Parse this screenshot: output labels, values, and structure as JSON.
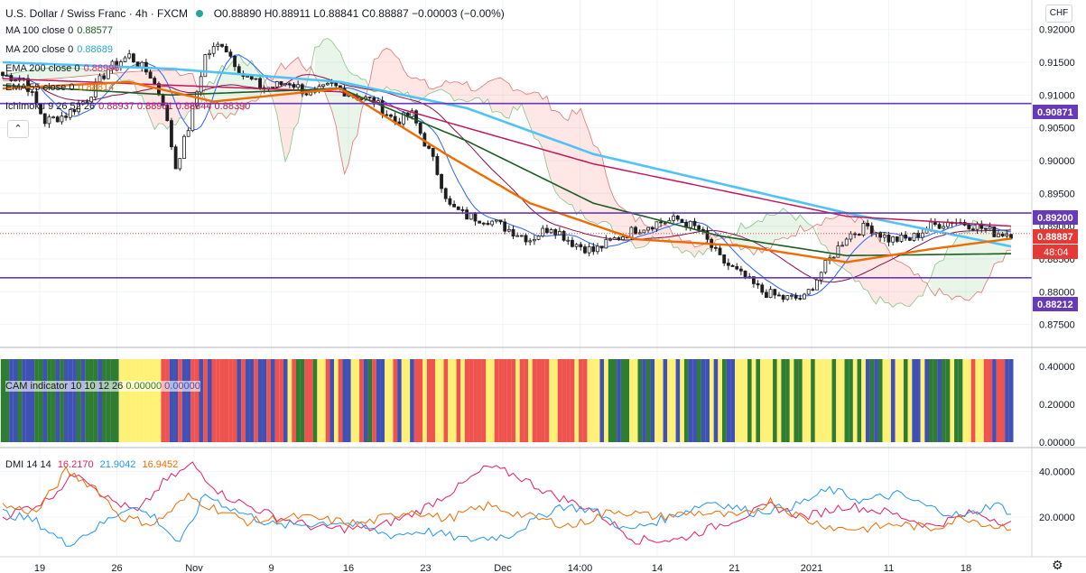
{
  "header": {
    "title": "U.S. Dollar / Swiss Franc · 4h · FXCM",
    "ohlc": "O0.88890 H0.88911 L0.88841 C0.88887 −0.00003 (−0.00%)",
    "currency": "CHF"
  },
  "legend": [
    {
      "label": "MA 100 close 0",
      "value": "0.88577",
      "color": "#1b5e20"
    },
    {
      "label": "MA 200 close 0",
      "value": "0.88689",
      "color": "#26a7c9"
    },
    {
      "label": "EMA 200 close 0",
      "value": "0.88996",
      "color": "#e91e63"
    },
    {
      "label": "EMA 55 close 0",
      "value": "0.88814",
      "color": "#ef6c00"
    },
    {
      "label": "Ichimoku 9 26 52 26",
      "value": "0.88937 0.88951 0.88844 0.88390",
      "color": "#2962ff"
    }
  ],
  "cam": {
    "label": "CAM indicator 10 10 12 26",
    "v1": "0.00000",
    "v2": "0.00000"
  },
  "dmi": {
    "label": "DMI 14 14",
    "v1": "16.2170",
    "v2": "21.9042",
    "v3": "16.9452",
    "c1": "#e91e63",
    "c2": "#2196f3",
    "c3": "#ef6c00"
  },
  "price_badges": {
    "upper_level": "0.90871",
    "mid_level": "0.89200",
    "last_price": "0.88887",
    "countdown": "48:04",
    "lower_level": "0.88212"
  },
  "chart_data": [
    {
      "type": "candlestick",
      "title": "U.S. Dollar / Swiss Franc · 4h · FXCM",
      "ylim": [
        0.8715,
        0.9245
      ],
      "y_ticks": [
        "0.92000",
        "0.91500",
        "0.91000",
        "0.90500",
        "0.90000",
        "0.89500",
        "0.89000",
        "0.88500",
        "0.88000",
        "0.87500"
      ],
      "x_ticks": [
        "19",
        "26",
        "Nov",
        "9",
        "16",
        "23",
        "Dec",
        "14:00",
        "14",
        "21",
        "2021",
        "11",
        "18"
      ],
      "horizontal_lines": [
        0.90871,
        0.892,
        0.88212
      ],
      "close_anchors": [
        [
          0,
          0.913
        ],
        [
          5,
          0.9125
        ],
        [
          10,
          0.906
        ],
        [
          15,
          0.907
        ],
        [
          20,
          0.9095
        ],
        [
          25,
          0.914
        ],
        [
          30,
          0.916
        ],
        [
          35,
          0.913
        ],
        [
          38,
          0.909
        ],
        [
          41,
          0.899
        ],
        [
          44,
          0.905
        ],
        [
          48,
          0.916
        ],
        [
          52,
          0.918
        ],
        [
          57,
          0.913
        ],
        [
          62,
          0.911
        ],
        [
          68,
          0.912
        ],
        [
          73,
          0.91
        ],
        [
          78,
          0.9115
        ],
        [
          83,
          0.91
        ],
        [
          88,
          0.909
        ],
        [
          93,
          0.906
        ],
        [
          97,
          0.907
        ],
        [
          102,
          0.9
        ],
        [
          106,
          0.893
        ],
        [
          110,
          0.8915
        ],
        [
          115,
          0.891
        ],
        [
          120,
          0.8895
        ],
        [
          125,
          0.888
        ],
        [
          130,
          0.89
        ],
        [
          135,
          0.8875
        ],
        [
          140,
          0.8862
        ],
        [
          145,
          0.888
        ],
        [
          150,
          0.8895
        ],
        [
          155,
          0.8905
        ],
        [
          160,
          0.891
        ],
        [
          165,
          0.8895
        ],
        [
          170,
          0.885
        ],
        [
          175,
          0.8825
        ],
        [
          180,
          0.88
        ],
        [
          185,
          0.879
        ],
        [
          190,
          0.879
        ],
        [
          195,
          0.884
        ],
        [
          200,
          0.8885
        ],
        [
          205,
          0.89
        ],
        [
          210,
          0.888
        ],
        [
          215,
          0.888
        ],
        [
          220,
          0.89
        ],
        [
          225,
          0.8908
        ],
        [
          230,
          0.8902
        ],
        [
          235,
          0.889
        ],
        [
          239,
          0.8889
        ]
      ],
      "ma_100": [
        [
          0,
          0.9115
        ],
        [
          40,
          0.91
        ],
        [
          80,
          0.911
        ],
        [
          110,
          0.903
        ],
        [
          140,
          0.8935
        ],
        [
          170,
          0.8885
        ],
        [
          200,
          0.8855
        ],
        [
          239,
          0.8858
        ]
      ],
      "ma_200": [
        [
          0,
          0.915
        ],
        [
          40,
          0.914
        ],
        [
          80,
          0.912
        ],
        [
          110,
          0.908
        ],
        [
          140,
          0.901
        ],
        [
          170,
          0.8965
        ],
        [
          200,
          0.892
        ],
        [
          239,
          0.8869
        ]
      ],
      "ema_200": [
        [
          0,
          0.9125
        ],
        [
          40,
          0.9115
        ],
        [
          80,
          0.9105
        ],
        [
          110,
          0.905
        ],
        [
          140,
          0.8995
        ],
        [
          170,
          0.8955
        ],
        [
          200,
          0.8915
        ],
        [
          239,
          0.89
        ]
      ],
      "ema_55": [
        [
          0,
          0.911
        ],
        [
          30,
          0.912
        ],
        [
          50,
          0.909
        ],
        [
          80,
          0.911
        ],
        [
          105,
          0.901
        ],
        [
          125,
          0.8935
        ],
        [
          150,
          0.888
        ],
        [
          175,
          0.887
        ],
        [
          200,
          0.8845
        ],
        [
          220,
          0.8865
        ],
        [
          239,
          0.8881
        ]
      ]
    },
    {
      "type": "heatmap",
      "title": "CAM indicator 10 10 12 26",
      "ylim": [
        0,
        0.5
      ],
      "y_ticks": [
        "0.40000",
        "0.20000",
        "0.00000"
      ],
      "color_states": [
        "#2e7d32",
        "#3f51b5",
        "#ef5350",
        "#fff176"
      ],
      "segments": [
        {
          "from": 0,
          "to": 28,
          "pattern": [
            "#2e7d32",
            "#3f51b5"
          ]
        },
        {
          "from": 28,
          "to": 38,
          "pattern": [
            "#fff176"
          ]
        },
        {
          "from": 38,
          "to": 68,
          "pattern": [
            "#ef5350",
            "#ef5350",
            "#3f51b5"
          ]
        },
        {
          "from": 68,
          "to": 98,
          "pattern": [
            "#fff176",
            "#ef5350",
            "#3f51b5",
            "#2e7d32"
          ]
        },
        {
          "from": 98,
          "to": 140,
          "pattern": [
            "#ef5350",
            "#ef5350",
            "#fff176"
          ]
        },
        {
          "from": 140,
          "to": 175,
          "pattern": [
            "#fff176",
            "#2e7d32",
            "#3f51b5"
          ]
        },
        {
          "from": 175,
          "to": 205,
          "pattern": [
            "#2e7d32",
            "#fff176",
            "#fff176"
          ]
        },
        {
          "from": 205,
          "to": 228,
          "pattern": [
            "#fff176",
            "#3f51b5",
            "#2e7d32"
          ]
        },
        {
          "from": 228,
          "to": 240,
          "pattern": [
            "#ef5350",
            "#fff176",
            "#3f51b5"
          ]
        }
      ]
    },
    {
      "type": "line",
      "title": "DMI 14 14",
      "ylim": [
        3,
        50
      ],
      "y_ticks": [
        "40.0000",
        "20.0000"
      ],
      "series": [
        {
          "name": "",
          "color": "#e91e63",
          "values": [
            [
              0,
              20
            ],
            [
              10,
              27
            ],
            [
              18,
              40
            ],
            [
              25,
              28
            ],
            [
              32,
              22
            ],
            [
              38,
              35
            ],
            [
              45,
              43
            ],
            [
              52,
              30
            ],
            [
              58,
              25
            ],
            [
              65,
              20
            ],
            [
              75,
              15
            ],
            [
              88,
              15
            ],
            [
              98,
              22
            ],
            [
              108,
              33
            ],
            [
              115,
              42
            ],
            [
              122,
              38
            ],
            [
              130,
              30
            ],
            [
              140,
              23
            ],
            [
              150,
              10
            ],
            [
              160,
              10
            ],
            [
              172,
              18
            ],
            [
              182,
              25
            ],
            [
              190,
              20
            ],
            [
              200,
              25
            ],
            [
              210,
              22
            ],
            [
              220,
              16
            ],
            [
              230,
              22
            ],
            [
              239,
              17
            ]
          ]
        },
        {
          "name": "",
          "color": "#2196f3",
          "values": [
            [
              0,
              22
            ],
            [
              8,
              18
            ],
            [
              15,
              8
            ],
            [
              22,
              15
            ],
            [
              30,
              25
            ],
            [
              36,
              20
            ],
            [
              42,
              8
            ],
            [
              48,
              30
            ],
            [
              55,
              23
            ],
            [
              65,
              16
            ],
            [
              80,
              18
            ],
            [
              92,
              12
            ],
            [
              100,
              14
            ],
            [
              110,
              10
            ],
            [
              120,
              12
            ],
            [
              132,
              25
            ],
            [
              140,
              23
            ],
            [
              148,
              14
            ],
            [
              158,
              20
            ],
            [
              168,
              27
            ],
            [
              178,
              22
            ],
            [
              188,
              25
            ],
            [
              196,
              32
            ],
            [
              204,
              27
            ],
            [
              212,
              30
            ],
            [
              220,
              24
            ],
            [
              228,
              20
            ],
            [
              235,
              26
            ],
            [
              239,
              22
            ]
          ]
        },
        {
          "name": "",
          "color": "#ef6c00",
          "values": [
            [
              0,
              25
            ],
            [
              8,
              22
            ],
            [
              15,
              40
            ],
            [
              22,
              33
            ],
            [
              28,
              20
            ],
            [
              36,
              17
            ],
            [
              44,
              29
            ],
            [
              50,
              24
            ],
            [
              58,
              18
            ],
            [
              70,
              20
            ],
            [
              85,
              17
            ],
            [
              97,
              23
            ],
            [
              105,
              19
            ],
            [
              115,
              25
            ],
            [
              125,
              20
            ],
            [
              135,
              16
            ],
            [
              145,
              23
            ],
            [
              155,
              20
            ],
            [
              165,
              22
            ],
            [
              175,
              20
            ],
            [
              182,
              27
            ],
            [
              190,
              19
            ],
            [
              198,
              15
            ],
            [
              205,
              15
            ],
            [
              212,
              17
            ],
            [
              220,
              15
            ],
            [
              228,
              20
            ],
            [
              235,
              16
            ],
            [
              239,
              16
            ]
          ]
        }
      ]
    }
  ]
}
